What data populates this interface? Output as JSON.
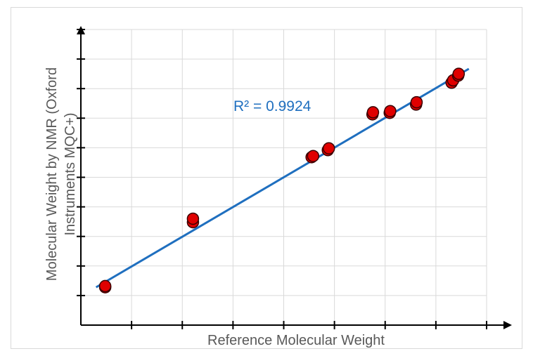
{
  "chart_data": {
    "type": "scatter",
    "title": "",
    "xlabel": "Reference Molecular Weight",
    "ylabel_lines": [
      "Molecular Weight by NMR (Oxford",
      "Instruments MQC+)"
    ],
    "xlim": [
      0,
      8
    ],
    "ylim": [
      0,
      10
    ],
    "grid": true,
    "tick_labels_shown": false,
    "annotation": "R² = 0.9924",
    "point_color": "#e00000",
    "trendline_color": "#1f6fbf",
    "points": [
      {
        "x": 0.48,
        "y": 1.28
      },
      {
        "x": 0.48,
        "y": 1.32
      },
      {
        "x": 2.21,
        "y": 3.48
      },
      {
        "x": 2.21,
        "y": 3.6
      },
      {
        "x": 4.55,
        "y": 5.68
      },
      {
        "x": 4.58,
        "y": 5.72
      },
      {
        "x": 4.87,
        "y": 5.92
      },
      {
        "x": 4.89,
        "y": 5.98
      },
      {
        "x": 5.75,
        "y": 7.13
      },
      {
        "x": 5.76,
        "y": 7.2
      },
      {
        "x": 6.09,
        "y": 7.18
      },
      {
        "x": 6.1,
        "y": 7.24
      },
      {
        "x": 6.61,
        "y": 7.46
      },
      {
        "x": 6.62,
        "y": 7.54
      },
      {
        "x": 7.31,
        "y": 8.2
      },
      {
        "x": 7.34,
        "y": 8.28
      },
      {
        "x": 7.44,
        "y": 8.44
      },
      {
        "x": 7.45,
        "y": 8.5
      }
    ],
    "trendline": {
      "x": [
        0.3,
        7.65
      ],
      "y": [
        1.28,
        8.67
      ]
    }
  }
}
